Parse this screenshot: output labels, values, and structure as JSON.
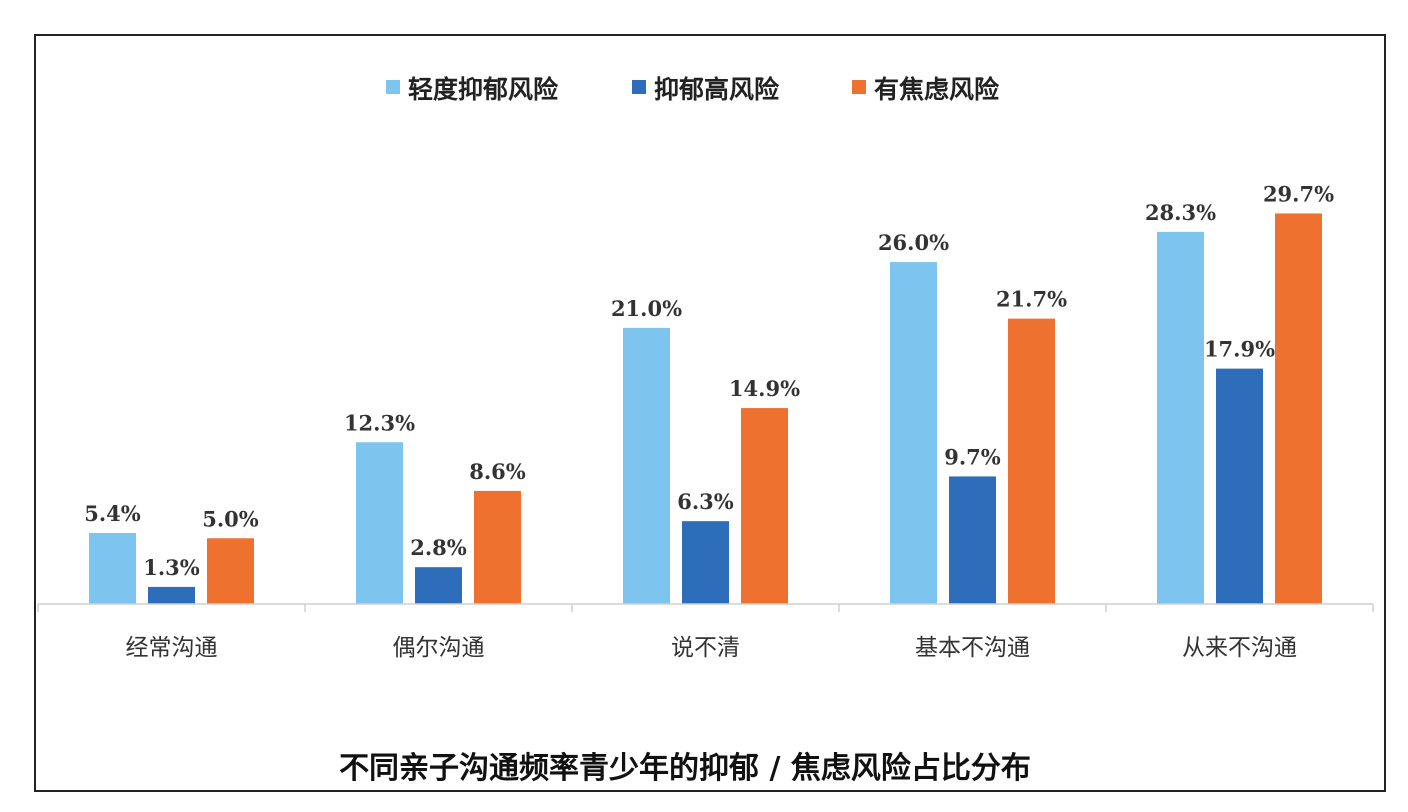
{
  "chart_data": {
    "type": "bar",
    "title": "不同亲子沟通频率青少年的抑郁 / 焦虑风险占比分布",
    "categories": [
      "经常沟通",
      "偶尔沟通",
      "说不清",
      "基本不沟通",
      "从来不沟通"
    ],
    "series": [
      {
        "name": "轻度抑郁风险",
        "color": "#7DC4EE",
        "values": [
          5.4,
          12.3,
          21.0,
          26.0,
          28.3
        ],
        "labels": [
          "5.4%",
          "12.3%",
          "21.0%",
          "26.0%",
          "28.3%"
        ]
      },
      {
        "name": "抑郁高风险",
        "color": "#2E6DB9",
        "values": [
          1.3,
          2.8,
          6.3,
          9.7,
          17.9
        ],
        "labels": [
          "1.3%",
          "2.8%",
          "6.3%",
          "9.7%",
          "17.9%"
        ]
      },
      {
        "name": "有焦虑风险",
        "color": "#EE7130",
        "values": [
          5.0,
          8.6,
          14.9,
          21.7,
          29.7
        ],
        "labels": [
          "5.0%",
          "8.6%",
          "14.9%",
          "21.7%",
          "29.7%"
        ]
      }
    ],
    "ylim": [
      0,
      32
    ],
    "grid": false,
    "legend_position": "top-center",
    "xlabel": "",
    "ylabel": ""
  }
}
